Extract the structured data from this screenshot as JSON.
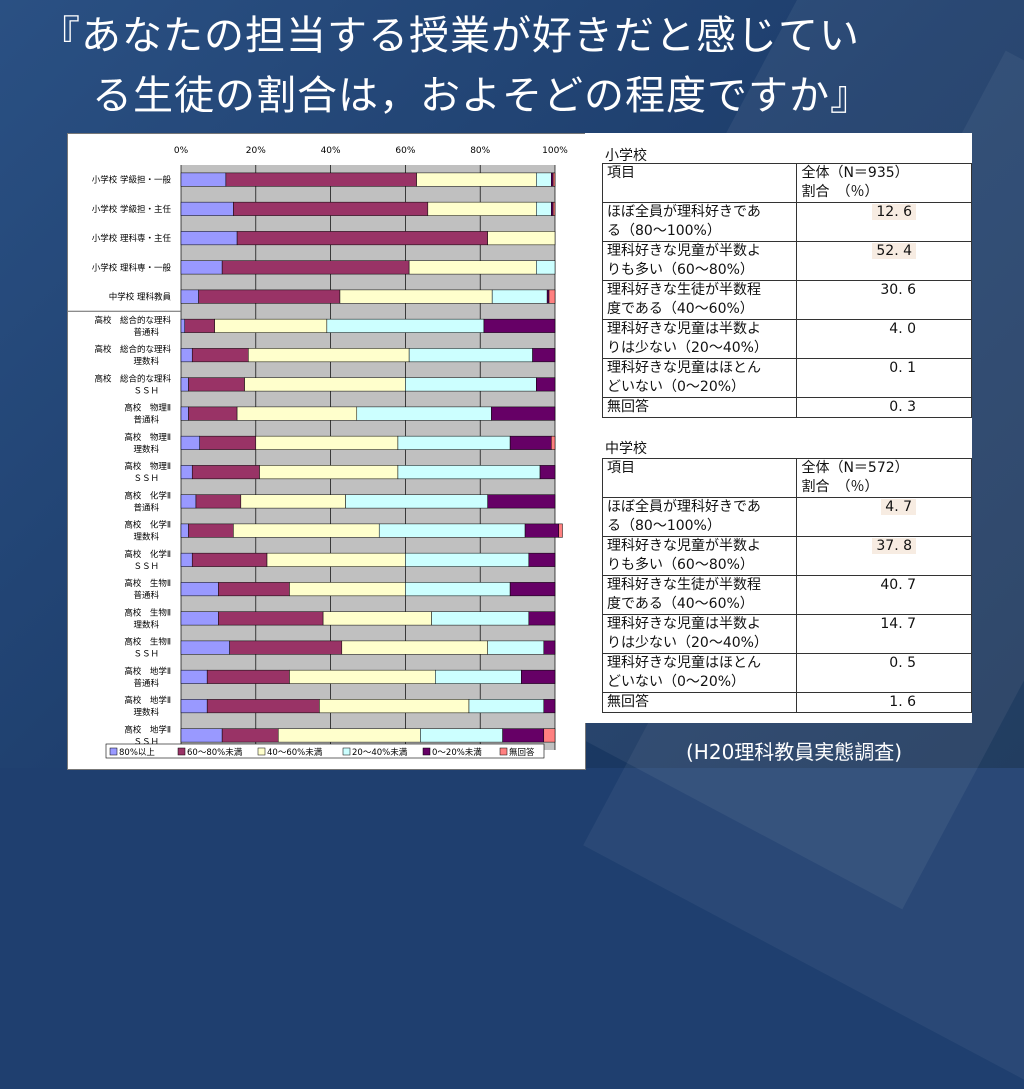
{
  "slide": {
    "title_line1": "『あなたの担当する授業が好きだと感じてい",
    "title_line2": "る生徒の割合は，およそどの程度ですか』",
    "source": "(H20理科教員実態調査)"
  },
  "colors": {
    "c80plus": "#9999ff",
    "c60_80": "#993366",
    "c40_60": "#ffffcc",
    "c20_40": "#ccffff",
    "c0_20": "#660066",
    "cnone": "#ff8080",
    "plot_bg": "#c0c0c0"
  },
  "chart_data": {
    "type": "bar",
    "orientation": "horizontal-stacked-100",
    "xticks": [
      "0%",
      "20%",
      "40%",
      "60%",
      "80%",
      "100%"
    ],
    "xlim": [
      0,
      100
    ],
    "categories": [
      [
        "小学校 学級担・一般"
      ],
      [
        "小学校 学級担・主任"
      ],
      [
        "小学校 理科専・主任"
      ],
      [
        "小学校 理科専・一般"
      ],
      [
        "中学校 理科教員"
      ],
      [
        "高校　総合的な理科",
        "普通科"
      ],
      [
        "高校　総合的な理科",
        "理数科"
      ],
      [
        "高校　総合的な理科",
        "ＳＳＨ"
      ],
      [
        "高校　物理Ⅱ",
        "普通科"
      ],
      [
        "高校　物理Ⅱ",
        "理数科"
      ],
      [
        "高校　物理Ⅱ",
        "ＳＳＨ"
      ],
      [
        "高校　化学Ⅱ",
        "普通科"
      ],
      [
        "高校　化学Ⅱ",
        "理数科"
      ],
      [
        "高校　化学Ⅱ",
        "ＳＳＨ"
      ],
      [
        "高校　生物Ⅱ",
        "普通科"
      ],
      [
        "高校　生物Ⅱ",
        "理数科"
      ],
      [
        "高校　生物Ⅱ",
        "ＳＳＨ"
      ],
      [
        "高校　地学Ⅱ",
        "普通科"
      ],
      [
        "高校　地学Ⅱ",
        "理数科"
      ],
      [
        "高校　地学Ⅱ",
        "ＳＳＨ"
      ]
    ],
    "series": [
      {
        "name": "80%以上",
        "values": [
          12,
          14,
          15,
          11,
          4.7,
          1,
          3,
          2,
          2,
          5,
          3,
          4,
          2,
          3,
          10,
          10,
          13,
          7,
          7,
          11
        ]
      },
      {
        "name": "60～80%未満",
        "values": [
          51,
          52,
          67,
          50,
          37.8,
          8,
          15,
          15,
          13,
          15,
          18,
          12,
          12,
          20,
          19,
          28,
          30,
          22,
          30,
          15
        ]
      },
      {
        "name": "40～60%未満",
        "values": [
          32,
          29,
          18,
          34,
          40.7,
          30,
          43,
          43,
          32,
          38,
          37,
          28,
          39,
          37,
          31,
          29,
          39,
          39,
          40,
          38
        ]
      },
      {
        "name": "20～40%未満",
        "values": [
          4,
          4,
          0,
          5,
          14.7,
          42,
          33,
          35,
          36,
          30,
          38,
          38,
          39,
          33,
          28,
          26,
          15,
          23,
          20,
          22
        ]
      },
      {
        "name": "0～20%未満",
        "values": [
          0.5,
          0.5,
          0,
          0,
          0.5,
          19,
          6,
          5,
          17,
          11,
          4,
          18,
          9,
          7,
          12,
          7,
          3,
          9,
          3,
          11
        ]
      },
      {
        "name": "無回答",
        "values": [
          0.5,
          0.5,
          0,
          0,
          1.6,
          0,
          0,
          0,
          0,
          1,
          0,
          0,
          1,
          0,
          0,
          0,
          0,
          0,
          0,
          3
        ]
      }
    ],
    "grid": true,
    "legend": "bottom"
  },
  "tables": [
    {
      "heading": "小学校",
      "header_item": "項目",
      "header_total": [
        "全体（N＝935）",
        "割合　（％）"
      ],
      "rows": [
        {
          "label": [
            "ほぼ全員が理科好きであ",
            "る（80～100%）"
          ],
          "value": "12. 6",
          "highlight": true
        },
        {
          "label": [
            "理科好きな児童が半数よ",
            "りも多い（60～80%）"
          ],
          "value": "52. 4",
          "highlight": true
        },
        {
          "label": [
            "理科好きな生徒が半数程",
            "度である（40～60%）"
          ],
          "value": "30. 6",
          "highlight": false
        },
        {
          "label": [
            "理科好きな児童は半数よ",
            "りは少ない（20～40%）"
          ],
          "value": "4. 0",
          "highlight": false
        },
        {
          "label": [
            "理科好きな児童はほとん",
            "どいない（0～20%）"
          ],
          "value": "0. 1",
          "highlight": false
        },
        {
          "label": [
            "無回答"
          ],
          "value": "0. 3",
          "highlight": false
        }
      ]
    },
    {
      "heading": "中学校",
      "header_item": "項目",
      "header_total": [
        "全体（N＝572）",
        "割合　（％）"
      ],
      "rows": [
        {
          "label": [
            "ほぼ全員が理科好きであ",
            "る（80～100%）"
          ],
          "value": "4. 7",
          "highlight": true
        },
        {
          "label": [
            "理科好きな児童が半数よ",
            "りも多い（60～80%）"
          ],
          "value": "37. 8",
          "highlight": true
        },
        {
          "label": [
            "理科好きな生徒が半数程",
            "度である（40～60%）"
          ],
          "value": "40. 7",
          "highlight": false
        },
        {
          "label": [
            "理科好きな児童は半数よ",
            "りは少ない（20～40%）"
          ],
          "value": "14. 7",
          "highlight": false
        },
        {
          "label": [
            "理科好きな児童はほとん",
            "どいない（0～20%）"
          ],
          "value": "0. 5",
          "highlight": false
        },
        {
          "label": [
            "無回答"
          ],
          "value": "1. 6",
          "highlight": false
        }
      ]
    }
  ]
}
